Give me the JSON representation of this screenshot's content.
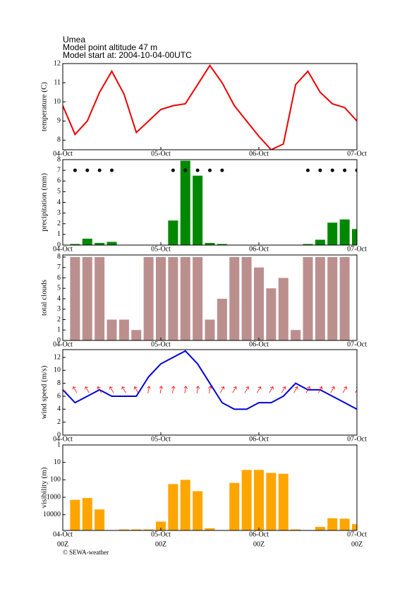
{
  "header": {
    "lines": [
      "Umea",
      "Model point altitude  47 m",
      "Model start at: 2004-10-04-00UTC"
    ]
  },
  "footer": "© SEWA-weather",
  "chart_data": [
    {
      "type": "line",
      "ylabel": "temperature (C)",
      "color": "#ee0000",
      "x": [
        0,
        3,
        6,
        9,
        12,
        15,
        18,
        21,
        24,
        27,
        30,
        33,
        36,
        39,
        42,
        45,
        48,
        51,
        54,
        57,
        60,
        63,
        66,
        69,
        72
      ],
      "series": [
        {
          "values": [
            9.8,
            8.3,
            9.0,
            10.5,
            11.6,
            10.4,
            8.4,
            9.0,
            9.6,
            9.8,
            9.9,
            10.9,
            11.9,
            11.0,
            9.8,
            9.0,
            8.2,
            7.5,
            7.8,
            10.9,
            11.6,
            10.5,
            9.9,
            9.7,
            9.0
          ]
        }
      ],
      "xlim": [
        0,
        72
      ],
      "xticks": [
        {
          "value": 0,
          "label": "04-Oct"
        },
        {
          "value": 24,
          "label": "05-Oct"
        },
        {
          "value": 48,
          "label": "06-Oct"
        },
        {
          "value": 72,
          "label": "07-Oct"
        }
      ],
      "ylim": [
        7.5,
        12
      ],
      "yticks": [
        8,
        9,
        10,
        11,
        12
      ]
    },
    {
      "type": "bar",
      "ylabel": "precipitation (mm)",
      "x": [
        0,
        3,
        6,
        9,
        12,
        15,
        18,
        21,
        24,
        27,
        30,
        33,
        36,
        39,
        42,
        45,
        48,
        51,
        54,
        57,
        60,
        63,
        66,
        69,
        72
      ],
      "series": [
        {
          "type": "bar",
          "color": "#008800",
          "values": [
            0,
            0.1,
            0.6,
            0.2,
            0.3,
            0,
            0,
            0,
            0,
            2.3,
            7.9,
            6.5,
            0.2,
            0.1,
            0,
            0,
            0,
            0,
            0,
            0,
            0.1,
            0.5,
            2.1,
            2.4,
            1.5
          ]
        },
        {
          "type": "dot",
          "color": "#000000",
          "values": [
            null,
            7,
            7,
            7,
            7,
            null,
            null,
            null,
            null,
            7,
            7,
            7,
            7,
            7,
            null,
            null,
            null,
            null,
            null,
            null,
            7,
            7,
            7,
            7,
            7
          ]
        }
      ],
      "xlim": [
        0,
        72
      ],
      "xticks": [
        {
          "value": 0,
          "label": "04-Oct"
        },
        {
          "value": 24,
          "label": "05-Oct"
        },
        {
          "value": 48,
          "label": "06-Oct"
        },
        {
          "value": 72,
          "label": "07-Oct"
        }
      ],
      "ylim": [
        0,
        8
      ],
      "yticks": [
        0,
        1,
        2,
        3,
        4,
        5,
        6,
        7,
        8
      ]
    },
    {
      "type": "bar",
      "ylabel": "total clouds",
      "color": "#bc8f8f",
      "x": [
        0,
        3,
        6,
        9,
        12,
        15,
        18,
        21,
        24,
        27,
        30,
        33,
        36,
        39,
        42,
        45,
        48,
        51,
        54,
        57,
        60,
        63,
        66,
        69,
        72
      ],
      "series": [
        {
          "values": [
            null,
            8,
            8,
            8,
            2,
            2,
            1,
            8,
            8,
            8,
            8,
            8,
            2,
            4,
            8,
            8,
            7,
            5,
            6,
            1,
            8,
            8,
            8,
            8,
            null
          ]
        }
      ],
      "xlim": [
        0,
        72
      ],
      "xticks": [
        {
          "value": 0,
          "label": "04-Oct"
        },
        {
          "value": 24,
          "label": "05-Oct"
        },
        {
          "value": 48,
          "label": "06-Oct"
        },
        {
          "value": 72,
          "label": "07-Oct"
        }
      ],
      "ylim": [
        0,
        8.2
      ],
      "yticks": [
        0,
        1,
        2,
        3,
        4,
        5,
        6,
        7,
        8
      ]
    },
    {
      "type": "line",
      "ylabel": "wind speed (m/s)",
      "color": "#0000dd",
      "x": [
        0,
        3,
        6,
        9,
        12,
        15,
        18,
        21,
        24,
        27,
        30,
        33,
        36,
        39,
        42,
        45,
        48,
        51,
        54,
        57,
        60,
        63,
        66,
        69,
        72
      ],
      "series": [
        {
          "values": [
            7,
            5,
            6,
            7,
            6,
            6,
            6,
            9,
            11,
            12,
            13,
            11,
            8,
            5,
            4,
            4,
            5,
            5,
            6,
            8,
            7,
            7,
            6,
            5,
            4
          ]
        }
      ],
      "arrow_direction": {
        "color": "#ff0000",
        "values": [
          300,
          330,
          330,
          330,
          330,
          330,
          330,
          10,
          10,
          10,
          10,
          10,
          10,
          30,
          30,
          30,
          30,
          30,
          30,
          30,
          30,
          30,
          30,
          30,
          30
        ]
      },
      "xlim": [
        0,
        72
      ],
      "xticks": [
        {
          "value": 0,
          "label": "04-Oct"
        },
        {
          "value": 24,
          "label": "05-Oct"
        },
        {
          "value": 48,
          "label": "06-Oct"
        },
        {
          "value": 72,
          "label": "07-Oct"
        }
      ],
      "ylim": [
        0,
        13.2
      ],
      "yticks": [
        0,
        2,
        4,
        6,
        8,
        10,
        12
      ]
    },
    {
      "type": "bar",
      "ylabel": "visibility (m)",
      "color": "#ffa500",
      "log_scale": true,
      "inverted": true,
      "x": [
        0,
        3,
        6,
        9,
        12,
        15,
        18,
        21,
        24,
        27,
        30,
        33,
        36,
        39,
        42,
        45,
        48,
        51,
        54,
        57,
        60,
        63,
        66,
        69,
        72
      ],
      "series": [
        {
          "values": [
            null,
            1400,
            1100,
            5000,
            null,
            70000,
            70000,
            70000,
            25000,
            175,
            100,
            450,
            60000,
            null,
            150,
            27,
            27,
            40,
            45,
            70000,
            null,
            50000,
            16000,
            17000,
            35000
          ]
        }
      ],
      "xlim": [
        0,
        72
      ],
      "xticks": [
        {
          "value": 0,
          "label": "04-Oct"
        },
        {
          "value": 24,
          "label": "05-Oct"
        },
        {
          "value": 48,
          "label": "06-Oct"
        },
        {
          "value": 72,
          "label": "07-Oct"
        }
      ],
      "xtick_sublabels": [
        "00Z",
        "00Z",
        "00Z",
        "00Z"
      ],
      "ylim": [
        1,
        80000
      ],
      "yticks": [
        1,
        10,
        100,
        1000,
        10000
      ]
    }
  ]
}
